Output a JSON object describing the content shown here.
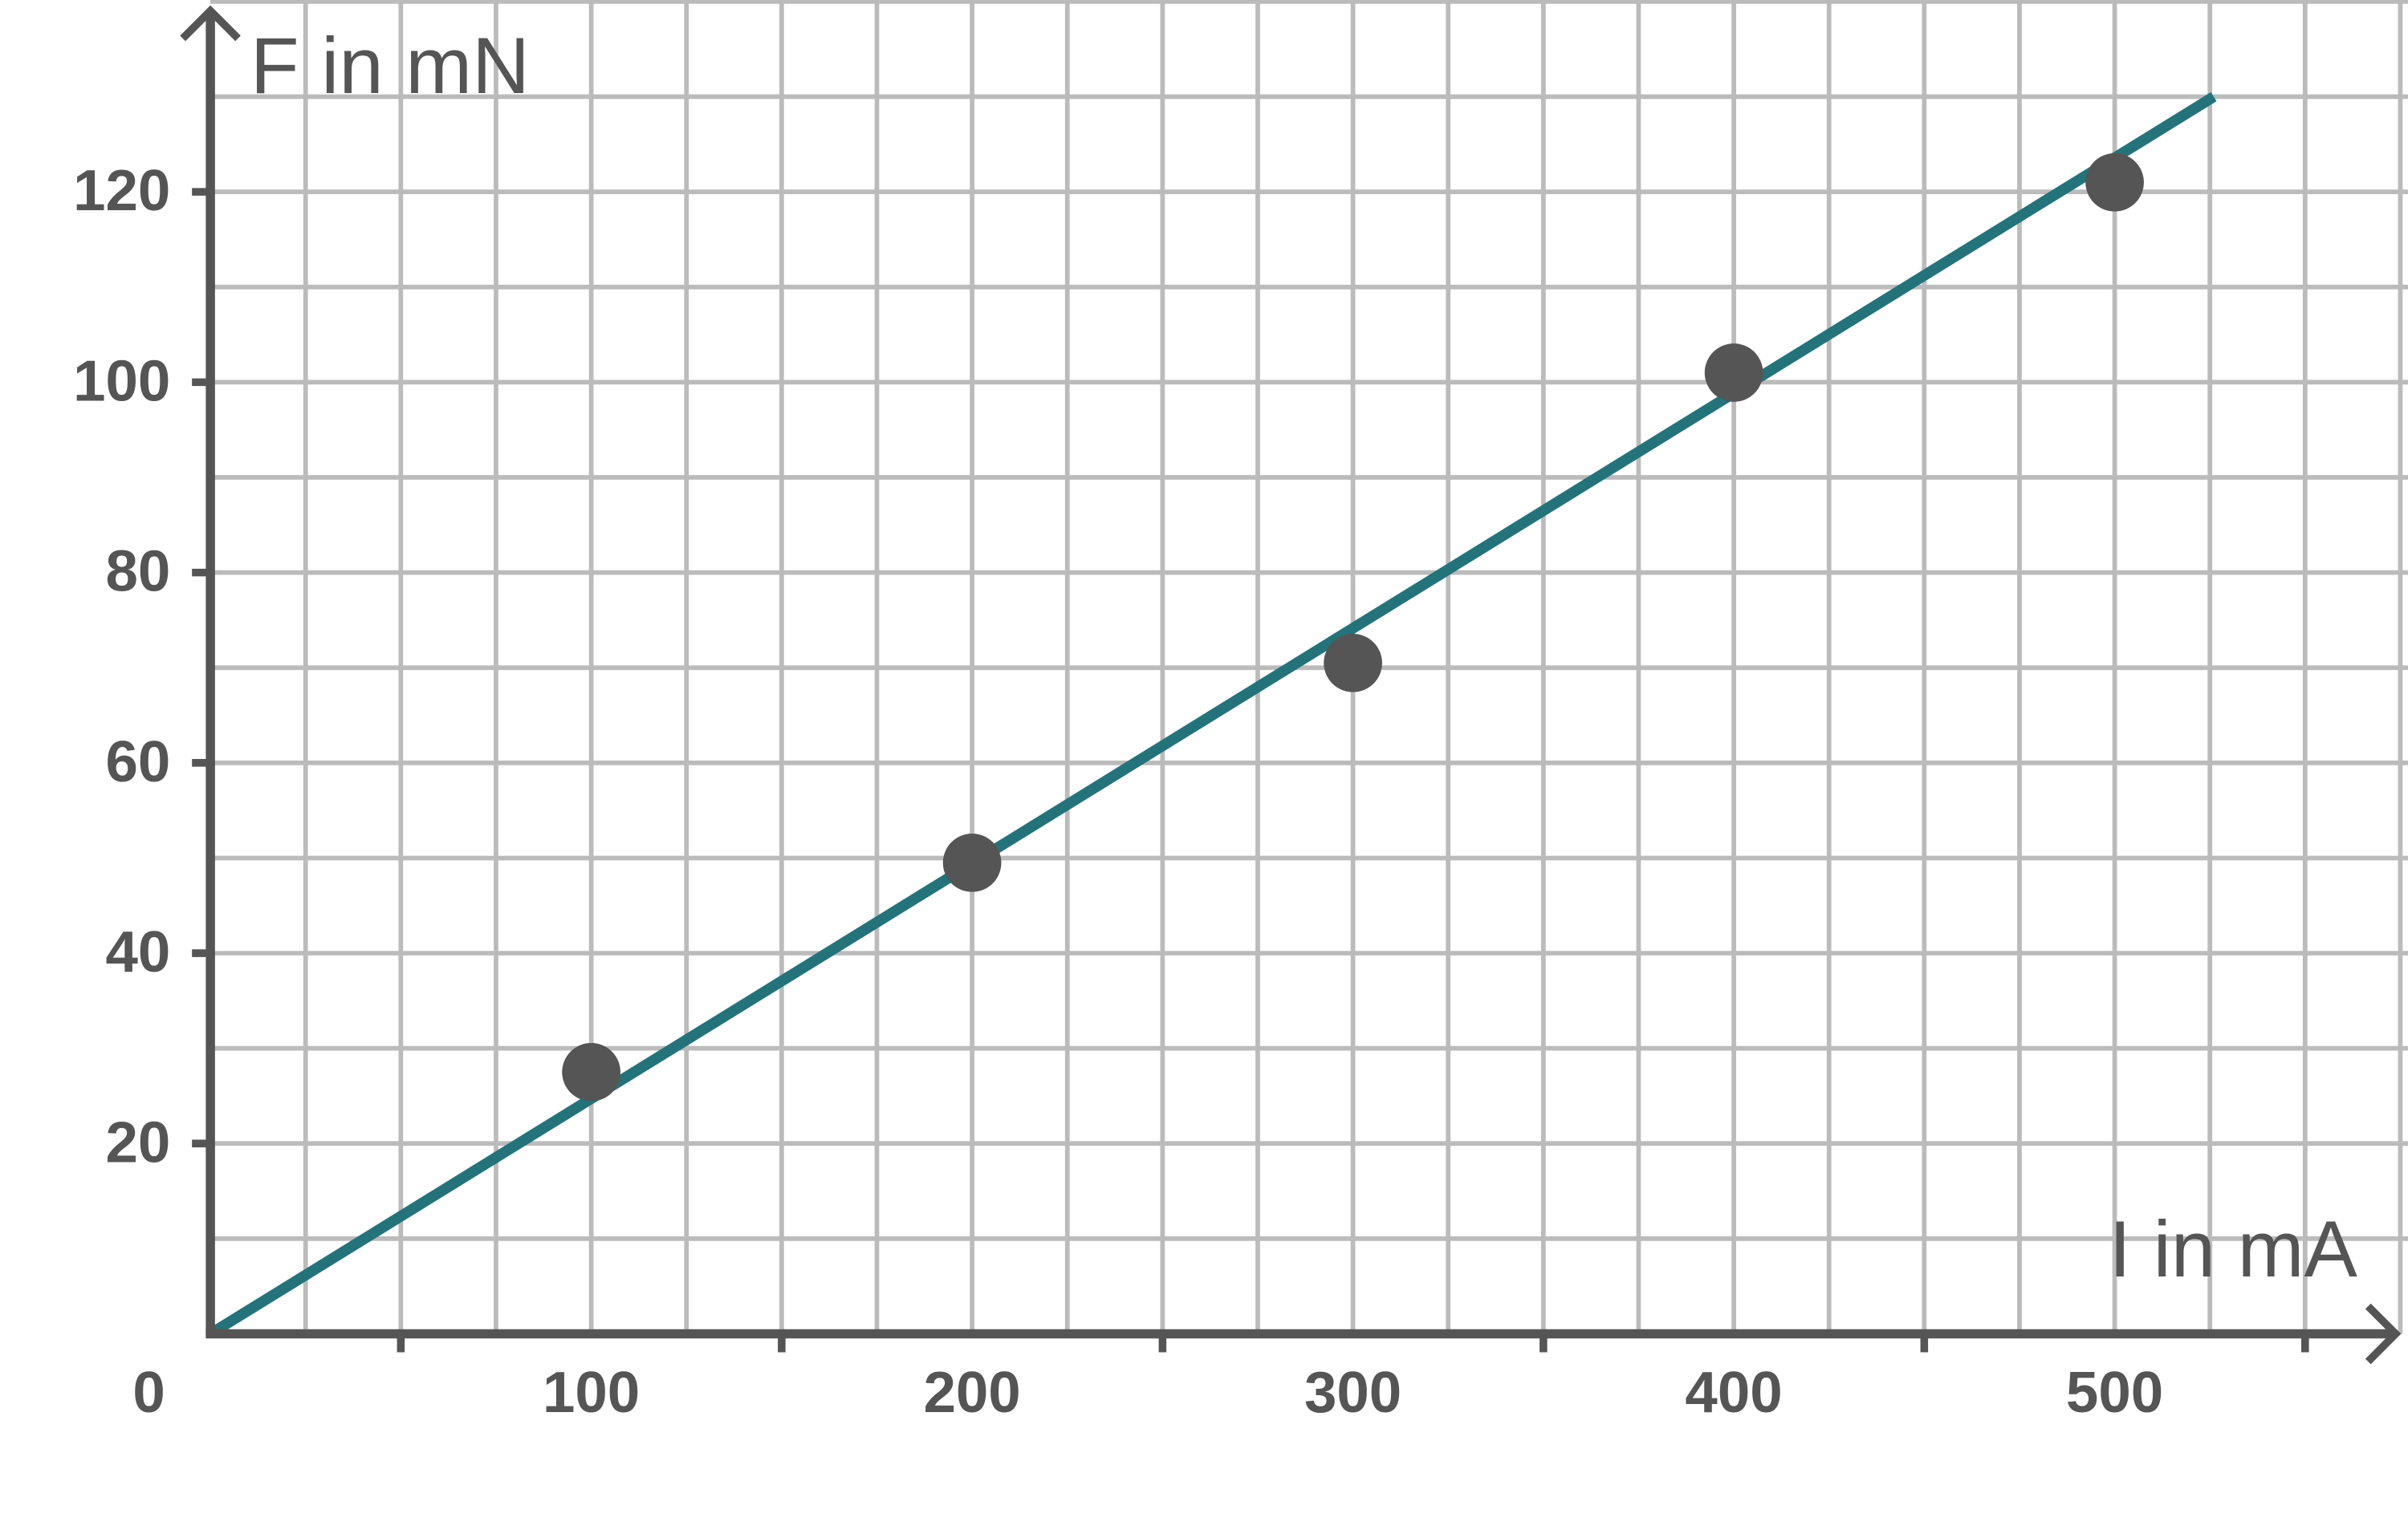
{
  "chart_data": {
    "type": "scatter",
    "x_label": "I in mA",
    "y_label": "F in mN",
    "x": [
      100,
      200,
      300,
      400,
      500
    ],
    "values": [
      27.5,
      49.5,
      70.5,
      101,
      121
    ],
    "color": "#555555",
    "fit_line": {
      "x": [
        0,
        526
      ],
      "values": [
        0,
        130
      ],
      "color": "#24737a"
    },
    "xlim": [
      0,
      574
    ],
    "ylim": [
      0,
      140
    ],
    "xticks": [
      0,
      100,
      200,
      300,
      400,
      500
    ],
    "xminor": [
      50,
      150,
      250,
      350,
      450,
      550
    ],
    "yticks": [
      20,
      40,
      60,
      80,
      100,
      120
    ],
    "xgrid": [
      25,
      50,
      75,
      100,
      125,
      150,
      175,
      200,
      225,
      250,
      275,
      300,
      325,
      350,
      375,
      400,
      425,
      450,
      475,
      500,
      525,
      550,
      575
    ],
    "ygrid": [
      10,
      20,
      30,
      40,
      50,
      60,
      70,
      80,
      90,
      100,
      110,
      120,
      130,
      140
    ],
    "grid": true
  }
}
